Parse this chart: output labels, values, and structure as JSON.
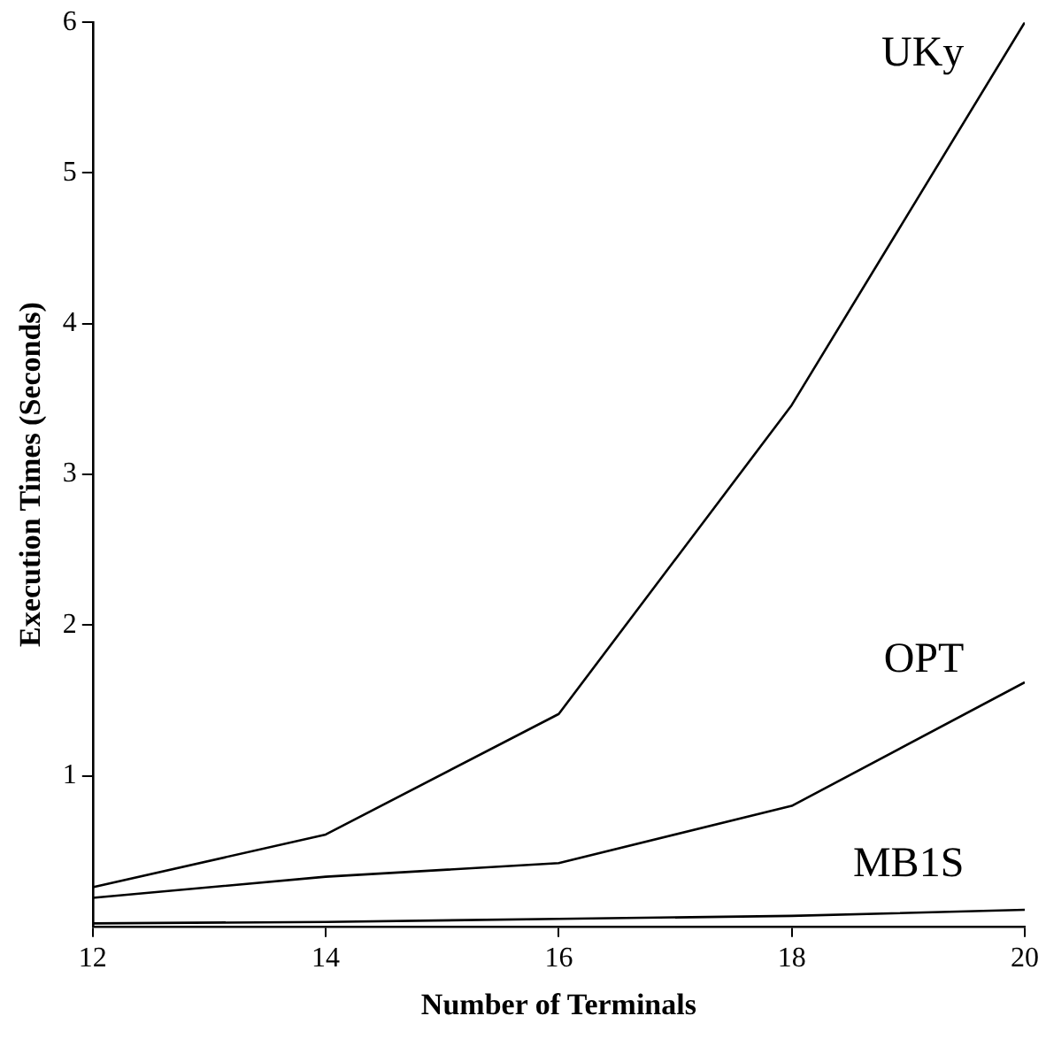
{
  "chart_data": {
    "type": "line",
    "xlabel": "Number of Terminals",
    "ylabel": "Execution Times (Seconds)",
    "x": [
      12,
      14,
      16,
      18,
      20
    ],
    "series": [
      {
        "name": "UKy",
        "color": "#000000",
        "values": [
          0.26,
          0.61,
          1.41,
          3.46,
          6.0
        ]
      },
      {
        "name": "OPT",
        "color": "#000000",
        "values": [
          0.19,
          0.33,
          0.42,
          0.8,
          1.62
        ]
      },
      {
        "name": "MB1S",
        "color": "#000000",
        "values": [
          0.02,
          0.03,
          0.05,
          0.07,
          0.11
        ]
      }
    ],
    "xlim": [
      12,
      20
    ],
    "xticks": [
      12,
      14,
      16,
      18,
      20
    ],
    "ylim": [
      0,
      6
    ],
    "yticks": [
      1,
      2,
      3,
      4,
      5,
      6
    ],
    "grid": false,
    "legend": false,
    "marker": "none",
    "line_style": "solid"
  }
}
